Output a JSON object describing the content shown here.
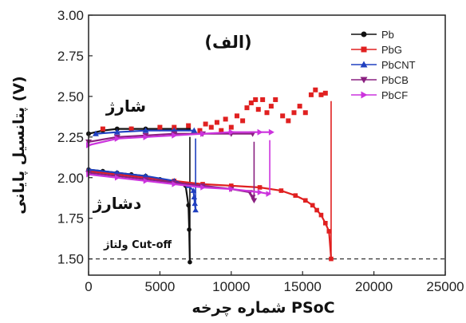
{
  "chart_data": {
    "type": "scatter",
    "title": "(الف)",
    "xlabel": "شماره چرخه PSoC",
    "ylabel": "پتانسیل پایانی (V)",
    "xlim": [
      0,
      25000
    ],
    "ylim": [
      1.4,
      3.0
    ],
    "xticks": [
      0,
      5000,
      10000,
      15000,
      20000,
      25000
    ],
    "yticks": [
      "1.50",
      "1.75",
      "2.00",
      "2.25",
      "2.50",
      "2.75",
      "3.00"
    ],
    "cutoff": {
      "y": 1.5,
      "label": "ولتاژ Cut-off",
      "style": "dashed"
    },
    "annotations": [
      {
        "text": "شارژ",
        "x": 2800,
        "y": 2.4
      },
      {
        "text": "دشارژ",
        "x": 1400,
        "y": 1.82
      }
    ],
    "legend_position": "top-right",
    "series": [
      {
        "name": "Pb",
        "color": "#111111",
        "marker": "circle",
        "charge": [
          [
            0,
            2.27
          ],
          [
            1000,
            2.29
          ],
          [
            2000,
            2.3
          ],
          [
            3000,
            2.3
          ],
          [
            4000,
            2.3
          ],
          [
            5000,
            2.3
          ],
          [
            6000,
            2.3
          ],
          [
            7000,
            2.3
          ]
        ],
        "discharge": [
          [
            0,
            2.05
          ],
          [
            1000,
            2.04
          ],
          [
            2000,
            2.03
          ],
          [
            3000,
            2.02
          ],
          [
            4000,
            2.01
          ],
          [
            5000,
            1.99
          ],
          [
            6000,
            1.97
          ],
          [
            6800,
            1.95
          ],
          [
            7000,
            1.83
          ],
          [
            7050,
            1.68
          ],
          [
            7100,
            1.48
          ]
        ],
        "end_cycle": 7100
      },
      {
        "name": "PbG",
        "color": "#e02020",
        "marker": "square",
        "charge": [
          [
            1000,
            2.3
          ],
          [
            3000,
            2.3
          ],
          [
            5000,
            2.31
          ],
          [
            6000,
            2.31
          ],
          [
            7000,
            2.32
          ],
          [
            7800,
            2.29
          ],
          [
            8200,
            2.33
          ],
          [
            8600,
            2.31
          ],
          [
            9000,
            2.34
          ],
          [
            9300,
            2.29
          ],
          [
            9600,
            2.36
          ],
          [
            10000,
            2.31
          ],
          [
            10400,
            2.38
          ],
          [
            10800,
            2.35
          ],
          [
            11100,
            2.43
          ],
          [
            11400,
            2.46
          ],
          [
            11700,
            2.48
          ],
          [
            11900,
            2.42
          ],
          [
            12200,
            2.48
          ],
          [
            12500,
            2.4
          ],
          [
            12800,
            2.44
          ],
          [
            13100,
            2.48
          ],
          [
            13600,
            2.38
          ],
          [
            14000,
            2.35
          ],
          [
            14400,
            2.4
          ],
          [
            14800,
            2.44
          ],
          [
            15200,
            2.4
          ],
          [
            15600,
            2.51
          ],
          [
            15900,
            2.54
          ],
          [
            16300,
            2.51
          ],
          [
            16600,
            2.52
          ]
        ],
        "discharge": [
          [
            0,
            2.04
          ],
          [
            2000,
            2.02
          ],
          [
            4000,
            2.0
          ],
          [
            6000,
            1.98
          ],
          [
            8000,
            1.96
          ],
          [
            10000,
            1.95
          ],
          [
            12000,
            1.94
          ],
          [
            13500,
            1.92
          ],
          [
            14500,
            1.89
          ],
          [
            15200,
            1.86
          ],
          [
            15700,
            1.83
          ],
          [
            16000,
            1.8
          ],
          [
            16300,
            1.77
          ],
          [
            16600,
            1.72
          ],
          [
            16850,
            1.67
          ],
          [
            17000,
            1.5
          ]
        ],
        "end_cycle": 17000
      },
      {
        "name": "PbCNT",
        "color": "#2040c0",
        "marker": "triangle-up",
        "charge": [
          [
            500,
            2.27
          ],
          [
            2000,
            2.28
          ],
          [
            4000,
            2.29
          ],
          [
            6000,
            2.29
          ],
          [
            7400,
            2.29
          ]
        ],
        "discharge": [
          [
            0,
            2.05
          ],
          [
            2000,
            2.03
          ],
          [
            4000,
            2.01
          ],
          [
            6000,
            1.98
          ],
          [
            7000,
            1.95
          ],
          [
            7350,
            1.92
          ],
          [
            7400,
            1.88
          ],
          [
            7450,
            1.84
          ],
          [
            7500,
            1.8
          ]
        ],
        "end_cycle": 7500
      },
      {
        "name": "PbCB",
        "color": "#8a2080",
        "marker": "triangle-down",
        "charge": [
          [
            0,
            2.22
          ],
          [
            2000,
            2.25
          ],
          [
            4000,
            2.26
          ],
          [
            6000,
            2.27
          ],
          [
            8000,
            2.27
          ],
          [
            10000,
            2.27
          ],
          [
            11500,
            2.27
          ]
        ],
        "discharge": [
          [
            0,
            2.03
          ],
          [
            2000,
            2.01
          ],
          [
            4000,
            1.99
          ],
          [
            6000,
            1.97
          ],
          [
            8000,
            1.95
          ],
          [
            10000,
            1.93
          ],
          [
            11300,
            1.91
          ],
          [
            11500,
            1.88
          ],
          [
            11600,
            1.86
          ]
        ],
        "end_cycle": 11600
      },
      {
        "name": "PbCF",
        "color": "#cc33dd",
        "marker": "triangle-right",
        "charge": [
          [
            0,
            2.2
          ],
          [
            2000,
            2.24
          ],
          [
            4000,
            2.25
          ],
          [
            6000,
            2.26
          ],
          [
            8000,
            2.27
          ],
          [
            10000,
            2.28
          ],
          [
            12000,
            2.28
          ],
          [
            12800,
            2.28
          ]
        ],
        "discharge": [
          [
            0,
            2.02
          ],
          [
            2000,
            2.0
          ],
          [
            4000,
            1.98
          ],
          [
            6000,
            1.96
          ],
          [
            8000,
            1.94
          ],
          [
            10000,
            1.93
          ],
          [
            12000,
            1.91
          ],
          [
            12600,
            1.9
          ]
        ],
        "end_cycle": 12700
      }
    ]
  }
}
